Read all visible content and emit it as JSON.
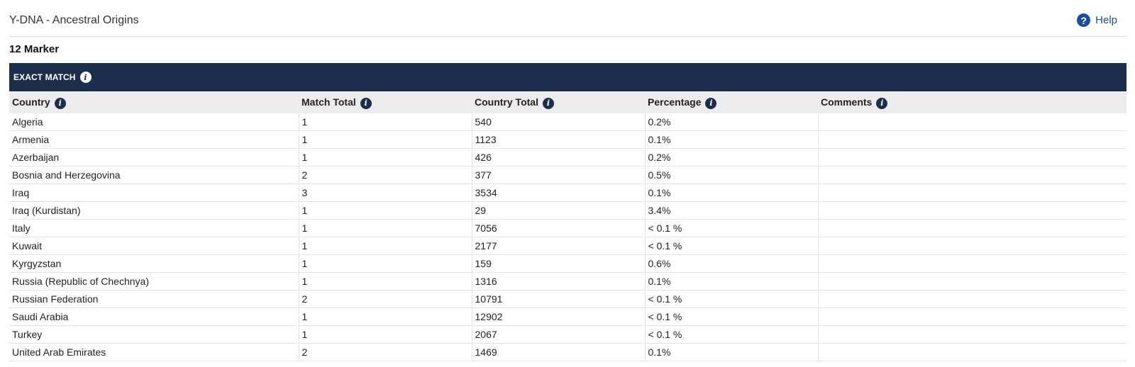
{
  "header": {
    "title": "Y-DNA - Ancestral Origins",
    "help_label": "Help"
  },
  "section": {
    "title": "12 Marker",
    "banner_label": "EXACT MATCH"
  },
  "table": {
    "columns": [
      "Country",
      "Match Total",
      "Country Total",
      "Percentage",
      "Comments"
    ],
    "rows": [
      [
        "Algeria",
        "1",
        "540",
        "0.2%",
        ""
      ],
      [
        "Armenia",
        "1",
        "1123",
        "0.1%",
        ""
      ],
      [
        "Azerbaijan",
        "1",
        "426",
        "0.2%",
        ""
      ],
      [
        "Bosnia and Herzegovina",
        "2",
        "377",
        "0.5%",
        ""
      ],
      [
        "Iraq",
        "3",
        "3534",
        "0.1%",
        ""
      ],
      [
        "Iraq (Kurdistan)",
        "1",
        "29",
        "3.4%",
        ""
      ],
      [
        "Italy",
        "1",
        "7056",
        "< 0.1 %",
        ""
      ],
      [
        "Kuwait",
        "1",
        "2177",
        "< 0.1 %",
        ""
      ],
      [
        "Kyrgyzstan",
        "1",
        "159",
        "0.6%",
        ""
      ],
      [
        "Russia (Republic of Chechnya)",
        "1",
        "1316",
        "0.1%",
        ""
      ],
      [
        "Russian Federation",
        "2",
        "10791",
        "< 0.1 %",
        ""
      ],
      [
        "Saudi Arabia",
        "1",
        "12902",
        "< 0.1 %",
        ""
      ],
      [
        "Turkey",
        "1",
        "2067",
        "< 0.1 %",
        ""
      ],
      [
        "United Arab Emirates",
        "2",
        "1469",
        "0.1%",
        ""
      ]
    ]
  },
  "icons": {
    "help": "question-circle-icon",
    "info": "info-circle-icon"
  },
  "colors": {
    "banner_bg": "#1b2e4b",
    "link": "#1d4e9e",
    "header_row_bg": "#ececec"
  }
}
